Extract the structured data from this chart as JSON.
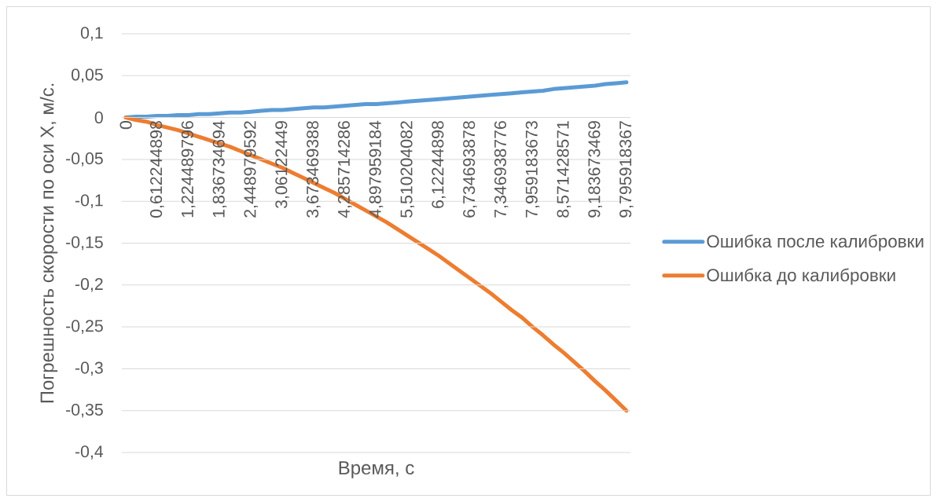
{
  "chart_data": {
    "type": "line",
    "xlabel": "Время, с",
    "ylabel": "Погрешность скорости по оси X, м/с.",
    "categories": [
      "0",
      null,
      null,
      "0,612244898",
      null,
      null,
      "1,224489796",
      null,
      null,
      "1,836734694",
      null,
      null,
      "2,448979592",
      null,
      null,
      "3,06122449",
      null,
      null,
      "3,673469388",
      null,
      null,
      "4,285714286",
      null,
      null,
      "4,897959184",
      null,
      null,
      "5,510204082",
      null,
      null,
      "6,12244898",
      null,
      null,
      "6,734693878",
      null,
      null,
      "7,346938776",
      null,
      null,
      "7,959183673",
      null,
      null,
      "8,571428571",
      null,
      null,
      "9,183673469",
      null,
      null,
      "9,795918367"
    ],
    "series": [
      {
        "name": "Ошибка после калибровки",
        "color": "#5b9bd5",
        "values": [
          0,
          0.001,
          0.001,
          0.002,
          0.002,
          0.003,
          0.003,
          0.004,
          0.004,
          0.005,
          0.006,
          0.006,
          0.007,
          0.008,
          0.009,
          0.009,
          0.01,
          0.011,
          0.012,
          0.012,
          0.013,
          0.014,
          0.015,
          0.016,
          0.016,
          0.017,
          0.018,
          0.019,
          0.02,
          0.021,
          0.022,
          0.023,
          0.024,
          0.025,
          0.026,
          0.027,
          0.028,
          0.029,
          0.03,
          0.031,
          0.032,
          0.034,
          0.035,
          0.036,
          0.037,
          0.038,
          0.04,
          0.041,
          0.042
        ]
      },
      {
        "name": "Ошибка до калибровки",
        "color": "#ed7d31",
        "values": [
          0,
          -0.003,
          -0.005,
          -0.009,
          -0.012,
          -0.015,
          -0.019,
          -0.023,
          -0.027,
          -0.031,
          -0.035,
          -0.04,
          -0.045,
          -0.05,
          -0.055,
          -0.06,
          -0.066,
          -0.072,
          -0.078,
          -0.084,
          -0.09,
          -0.097,
          -0.104,
          -0.111,
          -0.118,
          -0.125,
          -0.133,
          -0.141,
          -0.149,
          -0.157,
          -0.165,
          -0.174,
          -0.183,
          -0.192,
          -0.201,
          -0.21,
          -0.22,
          -0.23,
          -0.239,
          -0.25,
          -0.26,
          -0.271,
          -0.281,
          -0.292,
          -0.303,
          -0.315,
          -0.326,
          -0.338,
          -0.35
        ]
      }
    ],
    "ylim": [
      -0.4,
      0.1
    ],
    "yticks": [
      {
        "value": 0.1,
        "label": "0,1"
      },
      {
        "value": 0.05,
        "label": "0,05"
      },
      0,
      {
        "value": -0.05,
        "label": "-0,05"
      },
      {
        "value": -0.1,
        "label": "-0,1"
      },
      {
        "value": -0.15,
        "label": "-0,15"
      },
      {
        "value": -0.2,
        "label": "-0,2"
      },
      {
        "value": -0.25,
        "label": "-0,25"
      },
      {
        "value": -0.3,
        "label": "-0,3"
      },
      {
        "value": -0.35,
        "label": "-0,35"
      },
      {
        "value": -0.4,
        "label": "-0,4"
      }
    ],
    "grid": "y",
    "legend": "right"
  }
}
